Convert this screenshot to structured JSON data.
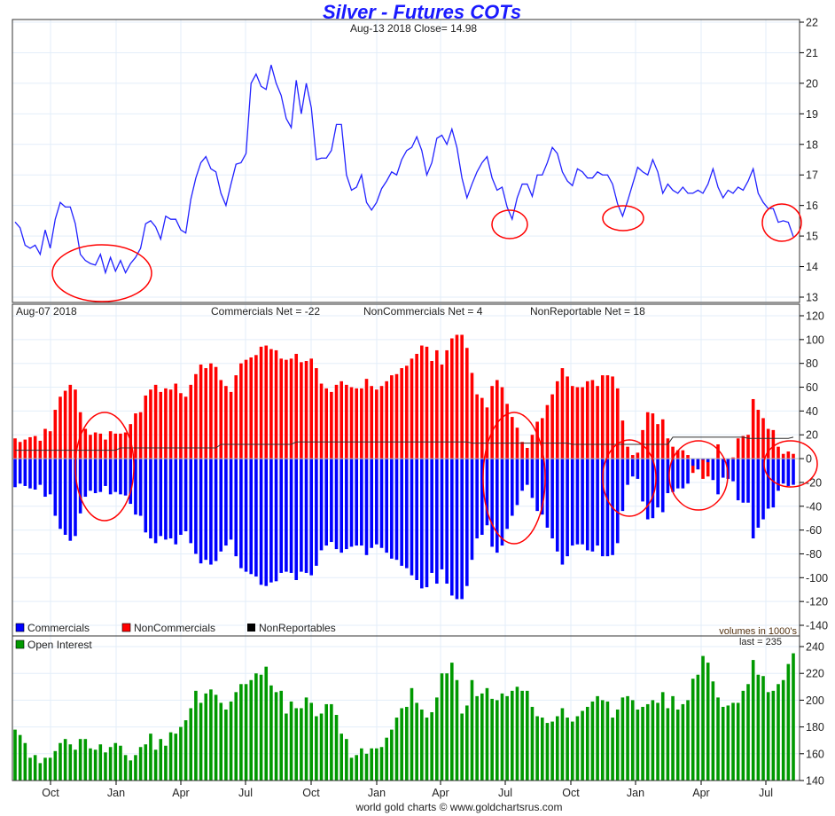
{
  "title": "Silver - Futures COTs",
  "price_header": "Aug-13  2018   Close= 14.98",
  "cot_header": {
    "date": "Aug-07  2018",
    "commercials_net": "Commercials Net = -22",
    "noncommercials_net": "NonCommercials Net = 4",
    "nonreportable_net": "NonReportable Net = 18"
  },
  "legend": {
    "commercials": "Commercials",
    "noncommercials": "NonCommercials",
    "nonreportables": "NonReportables",
    "units": "volumes in 1000's",
    "open_interest": "Open Interest",
    "last": "last = 235"
  },
  "footer": "world gold charts © www.goldchartsrus.com",
  "colors": {
    "price": "#2222ff",
    "commercials": "#0000ff",
    "noncommercials": "#ff0000",
    "nonreportables": "#333333",
    "open_interest": "#009900",
    "annotation": "#ff0000"
  },
  "chart_data": [
    {
      "type": "line",
      "name": "price",
      "ylim": [
        13,
        22
      ],
      "yticks": [
        13,
        14,
        15,
        16,
        17,
        18,
        19,
        20,
        21,
        22
      ],
      "xticks": [
        "Oct",
        "Jan",
        "Apr",
        "Jul",
        "Oct",
        "Jan",
        "Apr",
        "Jul",
        "Oct",
        "Jan",
        "Apr",
        "Jul"
      ],
      "grid": true,
      "values": [
        15.46,
        15.27,
        14.7,
        14.6,
        14.7,
        14.4,
        15.2,
        14.6,
        15.55,
        16.1,
        15.95,
        15.95,
        15.4,
        14.4,
        14.2,
        14.1,
        14.05,
        14.4,
        13.8,
        14.3,
        13.85,
        14.2,
        13.8,
        14.1,
        14.3,
        14.6,
        15.4,
        15.5,
        15.3,
        14.9,
        15.65,
        15.55,
        15.55,
        15.2,
        15.1,
        16.2,
        16.9,
        17.4,
        17.6,
        17.2,
        17.1,
        16.4,
        16.0,
        16.7,
        17.35,
        17.4,
        17.7,
        20.0,
        20.3,
        19.9,
        19.8,
        20.6,
        20.0,
        19.6,
        18.85,
        18.55,
        20.1,
        19.0,
        20.0,
        19.2,
        17.5,
        17.55,
        17.55,
        17.8,
        18.65,
        18.65,
        17.0,
        16.5,
        16.6,
        17.0,
        16.1,
        15.85,
        16.1,
        16.55,
        16.8,
        17.1,
        17.0,
        17.5,
        17.8,
        17.9,
        18.25,
        17.8,
        17.0,
        17.4,
        18.2,
        18.3,
        18.0,
        18.5,
        17.9,
        16.9,
        16.25,
        16.7,
        17.1,
        17.4,
        17.6,
        16.9,
        16.5,
        16.6,
        15.95,
        15.55,
        16.25,
        16.7,
        16.7,
        16.3,
        17.0,
        17.0,
        17.4,
        17.9,
        17.7,
        17.1,
        16.8,
        16.65,
        17.2,
        17.1,
        16.9,
        16.9,
        17.1,
        17.0,
        17.0,
        16.7,
        16.05,
        15.65,
        16.15,
        16.7,
        17.25,
        17.1,
        17.0,
        17.5,
        17.1,
        16.4,
        16.7,
        16.5,
        16.4,
        16.6,
        16.4,
        16.4,
        16.5,
        16.4,
        16.7,
        17.2,
        16.6,
        16.25,
        16.5,
        16.4,
        16.6,
        16.5,
        16.8,
        17.2,
        16.4,
        16.1,
        15.9,
        15.9,
        15.45,
        15.5,
        15.45,
        14.98
      ]
    },
    {
      "type": "bar",
      "name": "cot",
      "ylim": [
        -140,
        120
      ],
      "yticks": [
        -140,
        -120,
        -100,
        -80,
        -60,
        -40,
        -20,
        0,
        20,
        40,
        60,
        80,
        100,
        120
      ],
      "grid": true,
      "legend": "bottom-left",
      "series": [
        {
          "name": "NonCommercials",
          "values": [
            17,
            14,
            16,
            18,
            19,
            15,
            25,
            23,
            41,
            52,
            57,
            62,
            58,
            39,
            25,
            20,
            22,
            21,
            16,
            23,
            21,
            21,
            22,
            29,
            38,
            39,
            53,
            58,
            62,
            56,
            59,
            58,
            63,
            55,
            52,
            62,
            71,
            79,
            76,
            80,
            77,
            66,
            61,
            56,
            70,
            80,
            83,
            85,
            87,
            94,
            95,
            92,
            91,
            84,
            83,
            84,
            88,
            81,
            82,
            84,
            76,
            63,
            59,
            56,
            62,
            65,
            62,
            60,
            59,
            59,
            67,
            61,
            58,
            61,
            65,
            70,
            71,
            76,
            78,
            84,
            88,
            95,
            94,
            82,
            91,
            79,
            91,
            101,
            104,
            104,
            93,
            72,
            54,
            51,
            43,
            61,
            66,
            60,
            46,
            35,
            26,
            14,
            9,
            20,
            31,
            34,
            45,
            54,
            65,
            76,
            69,
            61,
            60,
            60,
            65,
            66,
            61,
            70,
            70,
            69,
            59,
            32,
            10,
            3,
            5,
            24,
            39,
            38,
            29,
            33,
            17,
            10,
            7,
            7,
            3,
            -12,
            -9,
            -17,
            -15,
            0,
            12,
            -2,
            -1,
            1,
            17,
            19,
            20,
            50,
            41,
            34,
            25,
            24,
            10,
            4,
            6,
            4
          ]
        },
        {
          "name": "Commercials",
          "values": [
            -24,
            -21,
            -23,
            -25,
            -26,
            -22,
            -32,
            -30,
            -48,
            -59,
            -64,
            -69,
            -65,
            -46,
            -32,
            -27,
            -29,
            -28,
            -23,
            -30,
            -28,
            -30,
            -31,
            -38,
            -47,
            -48,
            -62,
            -67,
            -71,
            -65,
            -68,
            -67,
            -72,
            -64,
            -61,
            -71,
            -80,
            -88,
            -85,
            -89,
            -86,
            -78,
            -73,
            -68,
            -82,
            -92,
            -95,
            -97,
            -99,
            -106,
            -107,
            -104,
            -103,
            -96,
            -95,
            -96,
            -102,
            -95,
            -96,
            -98,
            -90,
            -77,
            -73,
            -70,
            -76,
            -79,
            -76,
            -74,
            -73,
            -73,
            -81,
            -75,
            -72,
            -75,
            -79,
            -84,
            -85,
            -90,
            -92,
            -98,
            -102,
            -109,
            -108,
            -96,
            -105,
            -93,
            -105,
            -115,
            -118,
            -118,
            -107,
            -85,
            -67,
            -64,
            -56,
            -74,
            -79,
            -73,
            -59,
            -48,
            -39,
            -27,
            -22,
            -33,
            -44,
            -47,
            -58,
            -67,
            -78,
            -89,
            -82,
            -73,
            -72,
            -72,
            -77,
            -78,
            -73,
            -82,
            -82,
            -81,
            -71,
            -44,
            -22,
            -15,
            -17,
            -36,
            -51,
            -50,
            -41,
            -45,
            -29,
            -28,
            -25,
            -25,
            -21,
            -6,
            -9,
            -1,
            -3,
            -18,
            -30,
            -16,
            -17,
            -19,
            -35,
            -37,
            -37,
            -67,
            -58,
            -51,
            -42,
            -41,
            -27,
            -21,
            -23,
            -22
          ]
        },
        {
          "name": "NonReportables",
          "type": "line",
          "values": [
            7,
            7,
            7,
            7,
            7,
            7,
            7,
            7,
            7,
            7,
            7,
            7,
            7,
            7,
            7,
            7,
            7,
            7,
            7,
            7,
            7,
            9,
            9,
            9,
            9,
            9,
            9,
            9,
            9,
            9,
            9,
            9,
            9,
            9,
            9,
            9,
            9,
            9,
            9,
            9,
            9,
            12,
            12,
            12,
            12,
            12,
            12,
            12,
            12,
            12,
            12,
            12,
            12,
            12,
            12,
            12,
            14,
            14,
            14,
            14,
            14,
            14,
            14,
            14,
            14,
            14,
            14,
            14,
            14,
            14,
            14,
            14,
            14,
            14,
            14,
            14,
            14,
            14,
            14,
            14,
            14,
            14,
            14,
            14,
            14,
            14,
            14,
            14,
            14,
            14,
            14,
            13,
            13,
            13,
            13,
            13,
            13,
            13,
            13,
            13,
            13,
            13,
            13,
            13,
            13,
            13,
            13,
            13,
            13,
            13,
            13,
            12,
            12,
            12,
            12,
            12,
            12,
            12,
            12,
            12,
            12,
            12,
            12,
            12,
            12,
            12,
            12,
            12,
            12,
            12,
            12,
            18,
            18,
            18,
            18,
            18,
            18,
            18,
            18,
            18,
            18,
            18,
            18,
            18,
            18,
            18,
            17,
            17,
            17,
            17,
            17,
            17,
            17,
            17,
            17,
            18
          ]
        }
      ]
    },
    {
      "type": "bar",
      "name": "Open Interest",
      "ylim": [
        140,
        240
      ],
      "yticks": [
        140,
        160,
        180,
        200,
        220,
        240
      ],
      "grid": true,
      "values": [
        178,
        174,
        168,
        157,
        159,
        153,
        157,
        157,
        162,
        168,
        171,
        167,
        163,
        171,
        171,
        164,
        163,
        167,
        161,
        165,
        168,
        166,
        159,
        155,
        159,
        165,
        167,
        175,
        163,
        171,
        166,
        176,
        175,
        180,
        185,
        194,
        207,
        198,
        205,
        208,
        204,
        198,
        193,
        199,
        206,
        212,
        212,
        215,
        220,
        219,
        225,
        211,
        206,
        207,
        190,
        199,
        194,
        194,
        202,
        198,
        188,
        190,
        197,
        197,
        189,
        175,
        171,
        157,
        159,
        164,
        160,
        164,
        164,
        165,
        172,
        178,
        187,
        194,
        195,
        209,
        198,
        193,
        187,
        191,
        202,
        220,
        220,
        228,
        215,
        190,
        196,
        215,
        203,
        205,
        209,
        201,
        200,
        205,
        203,
        207,
        210,
        207,
        207,
        195,
        188,
        187,
        183,
        184,
        188,
        194,
        187,
        184,
        188,
        192,
        195,
        199,
        203,
        200,
        199,
        187,
        193,
        202,
        203,
        200,
        193,
        195,
        197,
        200,
        198,
        206,
        194,
        203,
        193,
        197,
        200,
        216,
        219,
        233,
        228,
        214,
        202,
        195,
        196,
        198,
        198,
        207,
        212,
        230,
        219,
        218,
        206,
        207,
        212,
        215,
        227,
        235
      ]
    }
  ]
}
